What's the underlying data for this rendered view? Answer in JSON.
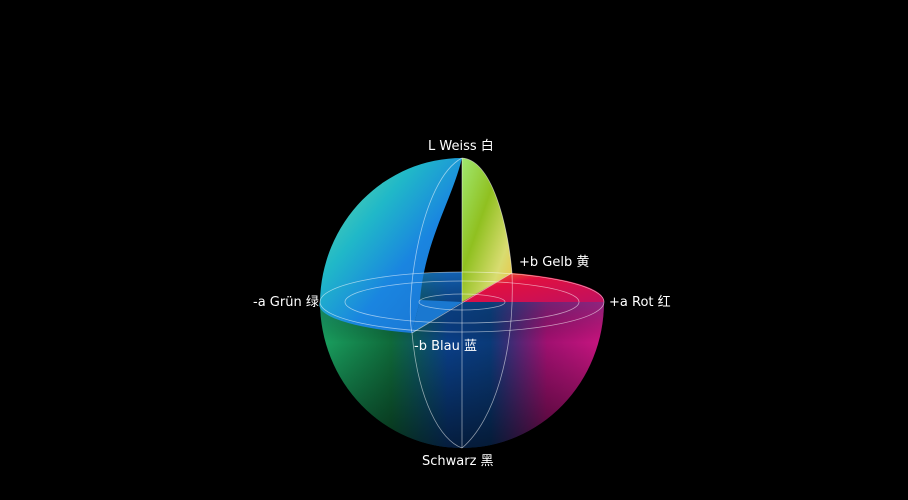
{
  "labels": {
    "top": "L Weiss 白",
    "yellow": "+b Gelb 黄",
    "red": "+a Rot 红",
    "green": "-a Grün 绿",
    "blue": "-b Blau 蓝",
    "bottom": "Schwarz 黑"
  },
  "colors": {
    "background": "#000000",
    "green": "#1fb86a",
    "cyan": "#20c8c0",
    "blue": "#1a7fd8",
    "yellow": "#dde070",
    "lime": "#8cc020",
    "red": "#e0103a",
    "magenta": "#c01078",
    "dark_blue": "#0a3a80"
  }
}
